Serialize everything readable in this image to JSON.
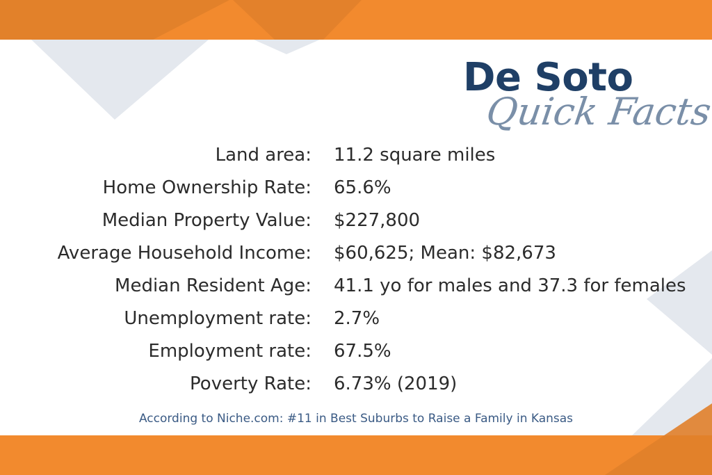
{
  "colors": {
    "accent_orange": "#f28a2e",
    "accent_orange_dark": "#e07f2a",
    "deco_gray": "#e4e8ee",
    "title_navy": "#1f3f66",
    "subtitle_slate": "#7a8fa8",
    "text": "#2b2b2b",
    "footer_blue": "#3a5a84"
  },
  "header": {
    "title": "De Soto",
    "subtitle": "Quick Facts"
  },
  "facts": [
    {
      "label": "Land area:",
      "value": "11.2 square miles"
    },
    {
      "label": "Home Ownership Rate:",
      "value": "65.6%"
    },
    {
      "label": "Median Property Value:",
      "value": "$227,800"
    },
    {
      "label": "Average Household Income:",
      "value": "$60,625;  Mean: $82,673"
    },
    {
      "label": "Median Resident Age:",
      "value": "41.1 yo for males and 37.3 for females"
    },
    {
      "label": "Unemployment rate:",
      "value": "2.7%"
    },
    {
      "label": "Employment rate:",
      "value": "67.5%"
    },
    {
      "label": "Poverty Rate:",
      "value": "6.73% (2019)"
    }
  ],
  "footer": {
    "text": "According to Niche.com:   #11 in Best Suburbs to Raise a Family in Kansas"
  }
}
